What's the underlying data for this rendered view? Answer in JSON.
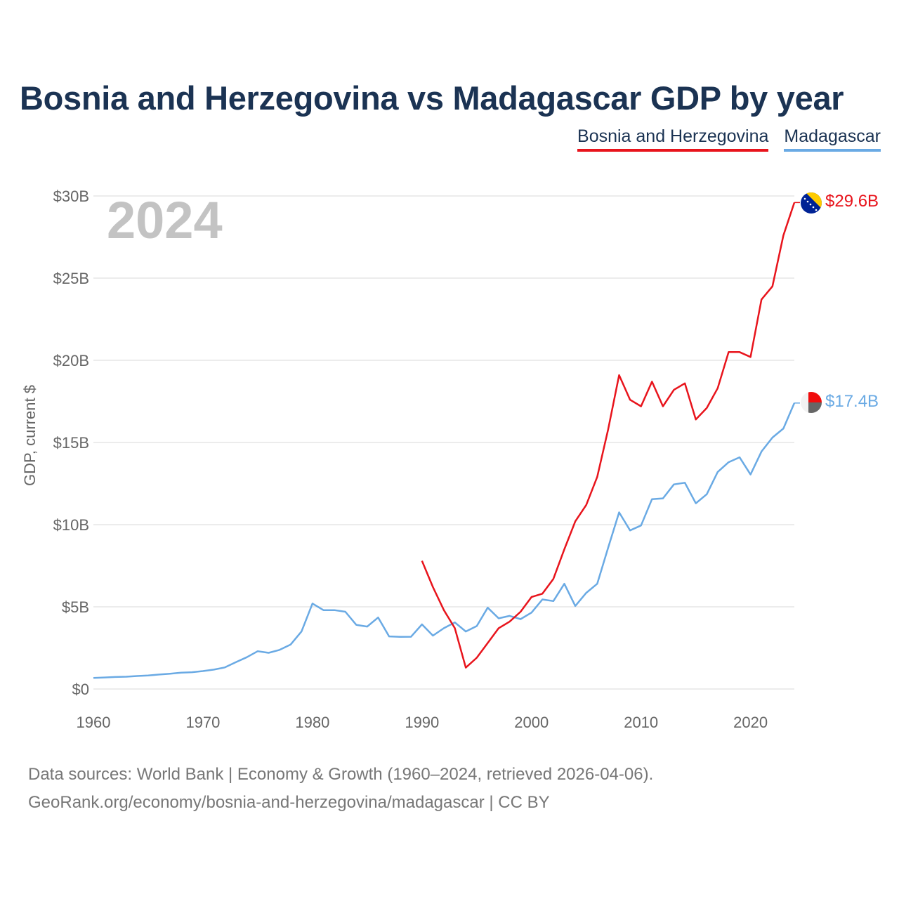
{
  "title": "Bosnia and Herzegovina vs Madagascar GDP by year",
  "legend": {
    "bih": "Bosnia and Herzegovina",
    "mdg": "Madagascar"
  },
  "colors": {
    "bih": "#e8141c",
    "mdg": "#6aaae4",
    "grid": "#e6e6e6",
    "axis": "#666666"
  },
  "footer": {
    "line1": "Data sources: World Bank | Economy & Growth (1960–2024, retrieved 2026-04-06).",
    "line2": "GeoRank.org/economy/bosnia-and-herzegovina/madagascar | CC BY"
  },
  "chart_data": {
    "type": "line",
    "title": "Bosnia and Herzegovina vs Madagascar GDP by year",
    "ylabel": "GDP, current $",
    "xlabel": "",
    "current_year_label": "2024",
    "xlim": [
      1960,
      2024
    ],
    "ylim": [
      0,
      30
    ],
    "x_ticks": [
      1960,
      1970,
      1980,
      1990,
      2000,
      2010,
      2020
    ],
    "y_ticks": [
      0,
      5,
      10,
      15,
      20,
      25,
      30
    ],
    "y_tick_labels": [
      "$0",
      "$5B",
      "$10B",
      "$15B",
      "$20B",
      "$25B",
      "$30B"
    ],
    "series": [
      {
        "name": "Bosnia and Herzegovina",
        "key": "bih",
        "end_label": "$29.6B",
        "icon": "bosnia-flag-icon",
        "x": [
          1990,
          1991,
          1992,
          1993,
          1994,
          1995,
          1996,
          1997,
          1998,
          1999,
          2000,
          2001,
          2002,
          2003,
          2004,
          2005,
          2006,
          2007,
          2008,
          2009,
          2010,
          2011,
          2012,
          2013,
          2014,
          2015,
          2016,
          2017,
          2018,
          2019,
          2020,
          2021,
          2022,
          2023,
          2024
        ],
        "values": [
          7.8,
          6.2,
          4.8,
          3.7,
          1.3,
          1.9,
          2.8,
          3.7,
          4.1,
          4.7,
          5.6,
          5.8,
          6.7,
          8.5,
          10.2,
          11.2,
          12.9,
          15.8,
          19.1,
          17.6,
          17.2,
          18.7,
          17.2,
          18.2,
          18.6,
          16.4,
          17.1,
          18.3,
          20.5,
          20.5,
          20.2,
          23.7,
          24.5,
          27.6,
          29.6
        ]
      },
      {
        "name": "Madagascar",
        "key": "mdg",
        "end_label": "$17.4B",
        "icon": "madagascar-flag-icon",
        "x": [
          1960,
          1961,
          1962,
          1963,
          1964,
          1965,
          1966,
          1967,
          1968,
          1969,
          1970,
          1971,
          1972,
          1973,
          1974,
          1975,
          1976,
          1977,
          1978,
          1979,
          1980,
          1981,
          1982,
          1983,
          1984,
          1985,
          1986,
          1987,
          1988,
          1989,
          1990,
          1991,
          1992,
          1993,
          1994,
          1995,
          1996,
          1997,
          1998,
          1999,
          2000,
          2001,
          2002,
          2003,
          2004,
          2005,
          2006,
          2007,
          2008,
          2009,
          2010,
          2011,
          2012,
          2013,
          2014,
          2015,
          2016,
          2017,
          2018,
          2019,
          2020,
          2021,
          2022,
          2023,
          2024
        ],
        "values": [
          0.67,
          0.7,
          0.73,
          0.75,
          0.79,
          0.82,
          0.88,
          0.93,
          0.99,
          1.02,
          1.09,
          1.18,
          1.31,
          1.63,
          1.93,
          2.3,
          2.2,
          2.38,
          2.7,
          3.5,
          5.2,
          4.8,
          4.8,
          4.7,
          3.9,
          3.8,
          4.35,
          3.2,
          3.17,
          3.18,
          3.93,
          3.25,
          3.7,
          4.05,
          3.5,
          3.83,
          4.95,
          4.3,
          4.45,
          4.25,
          4.65,
          5.45,
          5.35,
          6.4,
          5.05,
          5.85,
          6.4,
          8.6,
          10.75,
          9.65,
          9.95,
          11.55,
          11.6,
          12.45,
          12.55,
          11.3,
          11.85,
          13.2,
          13.8,
          14.1,
          13.05,
          14.45,
          15.3,
          15.85,
          17.4
        ]
      }
    ]
  }
}
